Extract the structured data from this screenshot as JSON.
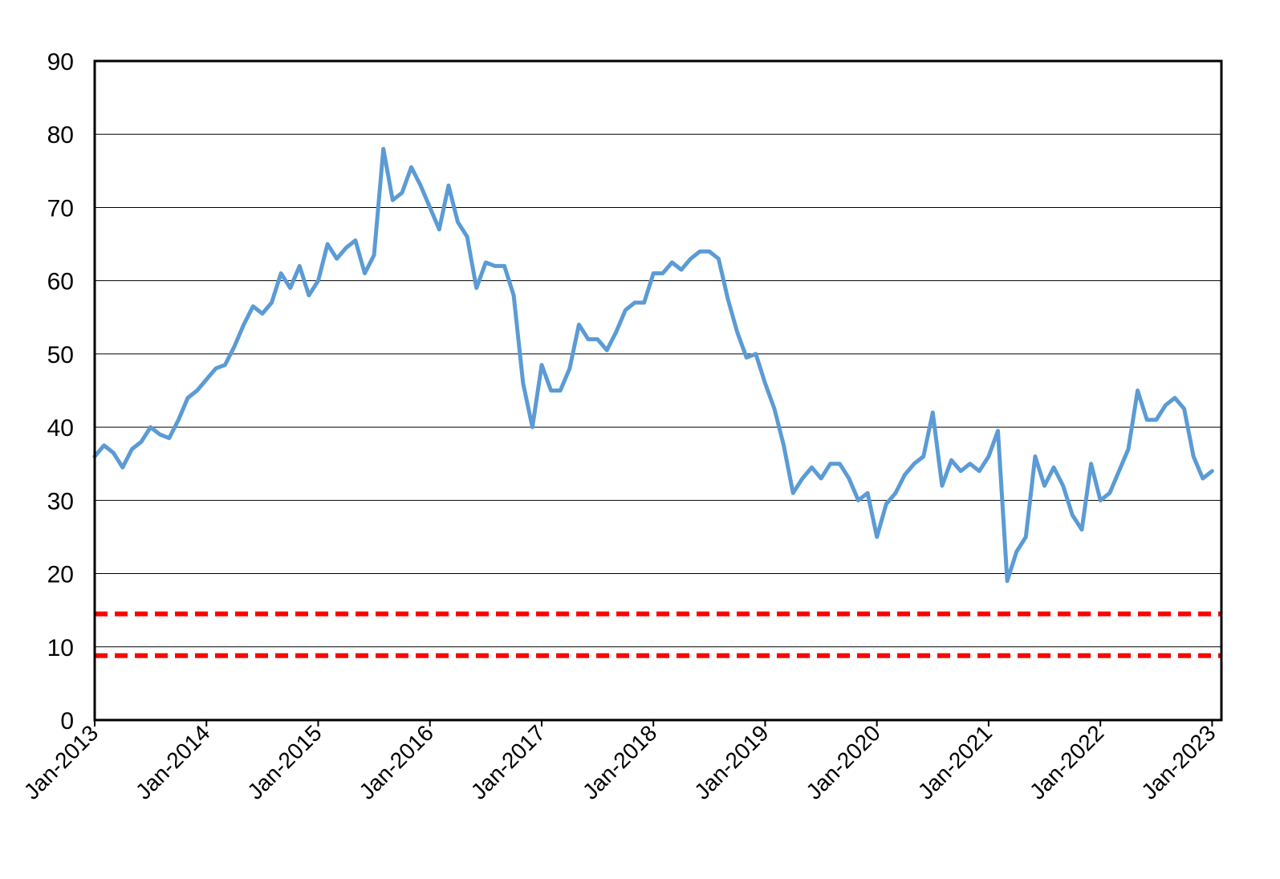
{
  "chart_data": {
    "type": "line",
    "title": "",
    "xlabel": "",
    "ylabel": "",
    "ylim": [
      0,
      90
    ],
    "yticks": [
      0,
      10,
      20,
      30,
      40,
      50,
      60,
      70,
      80,
      90
    ],
    "xlim": [
      "2013-01",
      "2023-02"
    ],
    "xticks": [
      "Jan-2013",
      "Jan-2014",
      "Jan-2015",
      "Jan-2016",
      "Jan-2017",
      "Jan-2018",
      "Jan-2019",
      "Jan-2020",
      "Jan-2021",
      "Jan-2022",
      "Jan-2023"
    ],
    "grid": true,
    "legend": "none",
    "series": [
      {
        "color": "#5b9bd5",
        "points": [
          [
            "2013-01",
            36
          ],
          [
            "2013-02",
            37.5
          ],
          [
            "2013-03",
            36.5
          ],
          [
            "2013-04",
            34.5
          ],
          [
            "2013-05",
            37
          ],
          [
            "2013-06",
            38
          ],
          [
            "2013-07",
            40
          ],
          [
            "2013-08",
            39
          ],
          [
            "2013-09",
            38.5
          ],
          [
            "2013-10",
            41
          ],
          [
            "2013-11",
            44
          ],
          [
            "2013-12",
            45
          ],
          [
            "2014-01",
            46.5
          ],
          [
            "2014-02",
            48
          ],
          [
            "2014-03",
            48.5
          ],
          [
            "2014-04",
            51
          ],
          [
            "2014-05",
            54
          ],
          [
            "2014-06",
            56.5
          ],
          [
            "2014-07",
            55.5
          ],
          [
            "2014-08",
            57
          ],
          [
            "2014-09",
            61
          ],
          [
            "2014-10",
            59
          ],
          [
            "2014-11",
            62
          ],
          [
            "2014-12",
            58
          ],
          [
            "2015-01",
            60
          ],
          [
            "2015-02",
            65
          ],
          [
            "2015-03",
            63
          ],
          [
            "2015-04",
            64.5
          ],
          [
            "2015-05",
            65.5
          ],
          [
            "2015-06",
            61
          ],
          [
            "2015-07",
            63.5
          ],
          [
            "2015-08",
            78
          ],
          [
            "2015-09",
            71
          ],
          [
            "2015-10",
            72
          ],
          [
            "2015-11",
            75.5
          ],
          [
            "2015-12",
            73
          ],
          [
            "2016-01",
            70
          ],
          [
            "2016-02",
            67
          ],
          [
            "2016-03",
            73
          ],
          [
            "2016-04",
            68
          ],
          [
            "2016-05",
            66
          ],
          [
            "2016-06",
            59
          ],
          [
            "2016-07",
            62.5
          ],
          [
            "2016-08",
            62
          ],
          [
            "2016-09",
            62
          ],
          [
            "2016-10",
            58
          ],
          [
            "2016-11",
            46
          ],
          [
            "2016-12",
            40
          ],
          [
            "2017-01",
            48.5
          ],
          [
            "2017-02",
            45
          ],
          [
            "2017-03",
            45
          ],
          [
            "2017-04",
            48
          ],
          [
            "2017-05",
            54
          ],
          [
            "2017-06",
            52
          ],
          [
            "2017-07",
            52
          ],
          [
            "2017-08",
            50.5
          ],
          [
            "2017-09",
            53
          ],
          [
            "2017-10",
            56
          ],
          [
            "2017-11",
            57
          ],
          [
            "2017-12",
            57
          ],
          [
            "2018-01",
            61
          ],
          [
            "2018-02",
            61
          ],
          [
            "2018-03",
            62.5
          ],
          [
            "2018-04",
            61.5
          ],
          [
            "2018-05",
            63
          ],
          [
            "2018-06",
            64
          ],
          [
            "2018-07",
            64
          ],
          [
            "2018-08",
            63
          ],
          [
            "2018-09",
            57.5
          ],
          [
            "2018-10",
            53
          ],
          [
            "2018-11",
            49.5
          ],
          [
            "2018-12",
            50
          ],
          [
            "2019-01",
            46
          ],
          [
            "2019-02",
            42.5
          ],
          [
            "2019-03",
            37.5
          ],
          [
            "2019-04",
            31
          ],
          [
            "2019-05",
            33
          ],
          [
            "2019-06",
            34.5
          ],
          [
            "2019-07",
            33
          ],
          [
            "2019-08",
            35
          ],
          [
            "2019-09",
            35
          ],
          [
            "2019-10",
            33
          ],
          [
            "2019-11",
            30
          ],
          [
            "2019-12",
            31
          ],
          [
            "2020-01",
            25
          ],
          [
            "2020-02",
            29.5
          ],
          [
            "2020-03",
            31
          ],
          [
            "2020-04",
            33.5
          ],
          [
            "2020-05",
            35
          ],
          [
            "2020-06",
            36
          ],
          [
            "2020-07",
            42
          ],
          [
            "2020-08",
            32
          ],
          [
            "2020-09",
            35.5
          ],
          [
            "2020-10",
            34
          ],
          [
            "2020-11",
            35
          ],
          [
            "2020-12",
            34
          ],
          [
            "2021-01",
            36
          ],
          [
            "2021-02",
            39.5
          ],
          [
            "2021-03",
            19
          ],
          [
            "2021-04",
            23
          ],
          [
            "2021-05",
            25
          ],
          [
            "2021-06",
            36
          ],
          [
            "2021-07",
            32
          ],
          [
            "2021-08",
            34.5
          ],
          [
            "2021-09",
            32
          ],
          [
            "2021-10",
            28
          ],
          [
            "2021-11",
            26
          ],
          [
            "2021-12",
            35
          ],
          [
            "2022-01",
            30
          ],
          [
            "2022-02",
            31
          ],
          [
            "2022-03",
            34
          ],
          [
            "2022-04",
            37
          ],
          [
            "2022-05",
            45
          ],
          [
            "2022-06",
            41
          ],
          [
            "2022-07",
            41
          ],
          [
            "2022-08",
            43
          ],
          [
            "2022-09",
            44
          ],
          [
            "2022-10",
            42.5
          ],
          [
            "2022-11",
            36
          ],
          [
            "2022-12",
            33
          ],
          [
            "2023-01",
            34
          ]
        ]
      }
    ],
    "reference_lines": [
      {
        "y": 14.5,
        "color": "#ff0000",
        "style": "dashed"
      },
      {
        "y": 8.8,
        "color": "#ff0000",
        "style": "dashed"
      }
    ]
  }
}
